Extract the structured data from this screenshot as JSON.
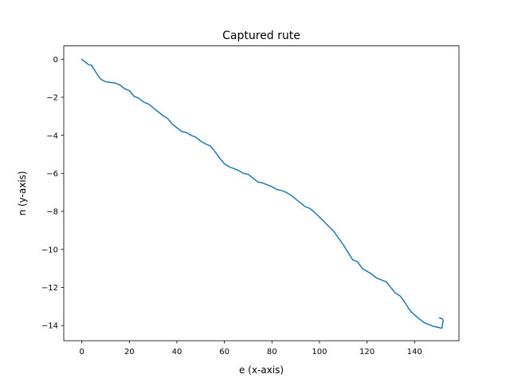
{
  "chart_data": {
    "type": "line",
    "title": "Captured rute",
    "xlabel": "e (x-axis)",
    "ylabel": "n (y-axis)",
    "xlim": [
      -7.6,
      158.7
    ],
    "ylim": [
      -14.8,
      0.7
    ],
    "xticks": [
      0,
      20,
      40,
      60,
      80,
      100,
      120,
      140
    ],
    "yticks": [
      0,
      -2,
      -4,
      -6,
      -8,
      -10,
      -12,
      -14
    ],
    "xtick_labels": [
      "0",
      "20",
      "40",
      "60",
      "80",
      "100",
      "120",
      "140"
    ],
    "ytick_labels": [
      "0",
      "−2",
      "−4",
      "−6",
      "−8",
      "−10",
      "−12",
      "−14"
    ],
    "grid": false,
    "series": [
      {
        "color": "#1f77b4",
        "x": [
          0,
          1,
          2,
          3,
          4,
          5,
          6,
          7,
          8,
          9,
          10,
          12,
          14,
          16,
          18,
          20,
          22,
          24,
          26,
          28,
          30,
          32,
          34,
          36,
          38,
          40,
          42,
          44,
          46,
          48,
          50,
          52,
          54,
          56,
          58,
          60,
          62,
          64,
          66,
          68,
          70,
          72,
          74,
          76,
          78,
          80,
          82,
          84,
          86,
          88,
          90,
          92,
          94,
          96,
          98,
          100,
          102,
          104,
          106,
          108,
          110,
          112,
          114,
          116,
          118,
          120,
          122,
          124,
          126,
          128,
          130,
          132,
          134,
          136,
          138,
          140,
          142,
          144,
          146,
          148,
          150,
          151.5,
          152,
          151.8,
          150.5
        ],
        "y": [
          0,
          -0.1,
          -0.2,
          -0.3,
          -0.3,
          -0.5,
          -0.7,
          -0.9,
          -1.05,
          -1.12,
          -1.18,
          -1.22,
          -1.25,
          -1.35,
          -1.55,
          -1.65,
          -1.95,
          -2.05,
          -2.25,
          -2.35,
          -2.55,
          -2.75,
          -2.95,
          -3.1,
          -3.4,
          -3.6,
          -3.8,
          -3.85,
          -4.0,
          -4.1,
          -4.3,
          -4.45,
          -4.55,
          -4.85,
          -5.2,
          -5.5,
          -5.65,
          -5.75,
          -5.85,
          -6.0,
          -6.05,
          -6.25,
          -6.45,
          -6.5,
          -6.6,
          -6.7,
          -6.85,
          -6.9,
          -7.0,
          -7.15,
          -7.35,
          -7.55,
          -7.75,
          -7.85,
          -8.05,
          -8.3,
          -8.55,
          -8.8,
          -9.05,
          -9.4,
          -9.75,
          -10.15,
          -10.55,
          -10.65,
          -11.0,
          -11.15,
          -11.3,
          -11.5,
          -11.6,
          -11.7,
          -12.0,
          -12.3,
          -12.45,
          -12.8,
          -13.2,
          -13.45,
          -13.65,
          -13.85,
          -13.95,
          -14.05,
          -14.1,
          -14.15,
          -13.75,
          -13.65,
          -13.6
        ]
      }
    ]
  }
}
